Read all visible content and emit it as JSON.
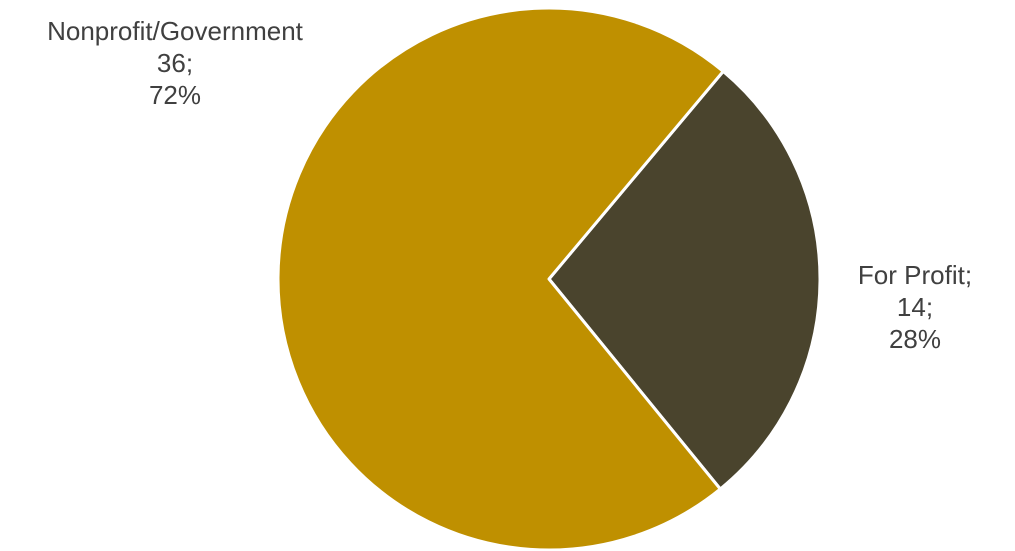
{
  "chart_data": {
    "type": "pie",
    "title": "",
    "start_angle_deg": 40,
    "direction": "clockwise",
    "slices": [
      {
        "name": "For Profit",
        "value": 14,
        "percent": "28%",
        "color": "#4a442d",
        "label_lines": [
          "For Profit;",
          "14;",
          "28%"
        ]
      },
      {
        "name": "Nonprofit/Government",
        "value": 36,
        "percent": "72%",
        "color": "#bf9000",
        "label_lines": [
          "Nonprofit/Government",
          "36;",
          "72%"
        ]
      }
    ]
  }
}
